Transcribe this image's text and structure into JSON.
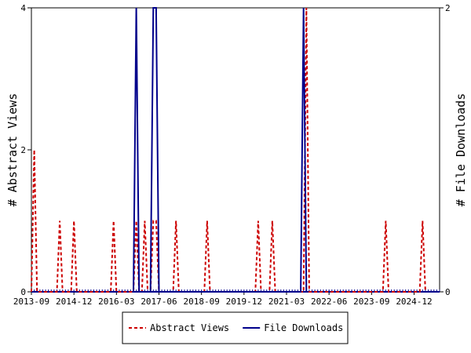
{
  "chart_data": {
    "type": "line",
    "left_axis": {
      "label": "# Abstract Views",
      "ylim": [
        0,
        4
      ],
      "ticks": [
        "0",
        "2",
        "4"
      ]
    },
    "right_axis": {
      "label": "# File Downloads",
      "ylim": [
        0,
        2
      ],
      "ticks": [
        "0",
        "2"
      ]
    },
    "x_ticks": [
      "2013-09",
      "2014-12",
      "2016-03",
      "2017-06",
      "2018-09",
      "2019-12",
      "2021-03",
      "2022-06",
      "2023-09",
      "2024-12"
    ],
    "x_range": [
      "2013-09",
      "2025-09"
    ],
    "legend_position": "bottom-center",
    "grid": false,
    "series": [
      {
        "name": "Abstract Views",
        "axis": "left",
        "color": "#cc0000",
        "style": "dashed",
        "points": [
          [
            "2013-09",
            0
          ],
          [
            "2013-10",
            2
          ],
          [
            "2013-11",
            0
          ],
          [
            "2014-06",
            0
          ],
          [
            "2014-07",
            1
          ],
          [
            "2014-08",
            0
          ],
          [
            "2014-11",
            0
          ],
          [
            "2014-12",
            1
          ],
          [
            "2015-01",
            0
          ],
          [
            "2016-01",
            0
          ],
          [
            "2016-02",
            1
          ],
          [
            "2016-03",
            0
          ],
          [
            "2016-09",
            0
          ],
          [
            "2016-10",
            1
          ],
          [
            "2016-11",
            0
          ],
          [
            "2016-12",
            0
          ],
          [
            "2017-01",
            1
          ],
          [
            "2017-02",
            0
          ],
          [
            "2017-03",
            0
          ],
          [
            "2017-04",
            1
          ],
          [
            "2017-05",
            1
          ],
          [
            "2017-06",
            0
          ],
          [
            "2017-11",
            0
          ],
          [
            "2017-12",
            1
          ],
          [
            "2018-01",
            0
          ],
          [
            "2018-10",
            0
          ],
          [
            "2018-11",
            1
          ],
          [
            "2018-12",
            0
          ],
          [
            "2020-04",
            0
          ],
          [
            "2020-05",
            1
          ],
          [
            "2020-06",
            0
          ],
          [
            "2020-09",
            0
          ],
          [
            "2020-10",
            1
          ],
          [
            "2020-11",
            0
          ],
          [
            "2021-09",
            0
          ],
          [
            "2021-10",
            4
          ],
          [
            "2021-11",
            0
          ],
          [
            "2024-01",
            0
          ],
          [
            "2024-02",
            1
          ],
          [
            "2024-03",
            0
          ],
          [
            "2025-02",
            0
          ],
          [
            "2025-03",
            1
          ],
          [
            "2025-04",
            0
          ]
        ]
      },
      {
        "name": "File Downloads",
        "axis": "right",
        "color": "#00008b",
        "style": "solid",
        "points": [
          [
            "2016-09",
            0
          ],
          [
            "2016-10",
            2
          ],
          [
            "2016-11",
            0
          ],
          [
            "2017-03",
            0
          ],
          [
            "2017-04",
            2
          ],
          [
            "2017-05",
            2
          ],
          [
            "2017-06",
            0
          ],
          [
            "2021-08",
            0
          ],
          [
            "2021-09",
            2
          ],
          [
            "2021-10",
            0
          ]
        ]
      }
    ]
  }
}
